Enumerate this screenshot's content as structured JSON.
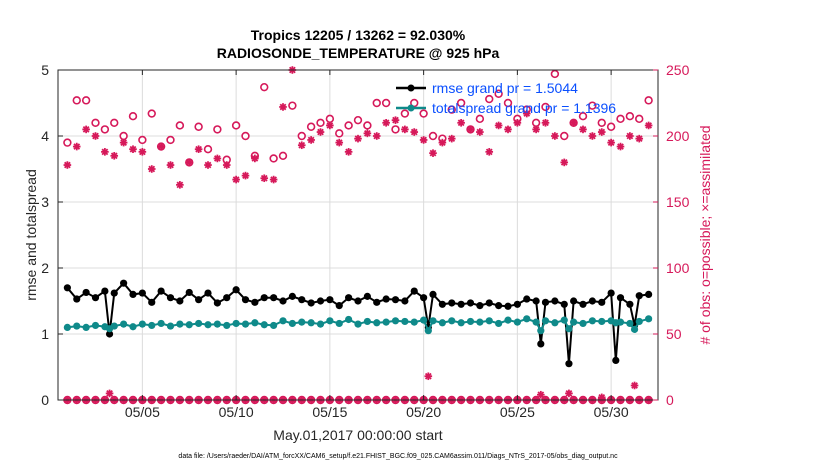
{
  "chart_data": {
    "type": "line",
    "title_line1": "Tropics 12205 / 13262 = 92.030%",
    "title_line2": "RADIOSONDE_TEMPERATURE @ 925 hPa",
    "xlabel": "May.01,2017 00:00:00 start",
    "ylabel_left": "rmse and totalspread",
    "ylabel_right": "# of obs: o=possible; ×=assimilated",
    "xlim": [
      0.5,
      32.5
    ],
    "ylim_left": [
      0,
      5
    ],
    "ylim_right": [
      0,
      250
    ],
    "xticks": [
      5,
      10,
      15,
      20,
      25,
      30
    ],
    "xtick_labels": [
      "05/05",
      "05/10",
      "05/15",
      "05/20",
      "05/25",
      "05/30"
    ],
    "yticks_left": [
      0,
      1,
      2,
      3,
      4,
      5
    ],
    "ytick_labels_left": [
      "0",
      "1",
      "2",
      "3",
      "4",
      "5"
    ],
    "yticks_right": [
      0,
      50,
      100,
      150,
      200,
      250
    ],
    "ytick_labels_right": [
      "0",
      "50",
      "100",
      "150",
      "200",
      "250"
    ],
    "grid": true,
    "legend": [
      {
        "label": "rmse grand pr = 1.5044",
        "color": "#000000"
      },
      {
        "label": "totalspread grand pr = 1.1396",
        "color": "#0f8a8a"
      }
    ],
    "series": [
      {
        "name": "rmse",
        "color": "#000000",
        "axis": "left",
        "x": [
          1.0,
          1.5,
          2.0,
          2.5,
          3.0,
          3.25,
          3.5,
          4.0,
          4.5,
          5.0,
          5.5,
          6.0,
          6.5,
          7.0,
          7.5,
          8.0,
          8.5,
          9.0,
          9.5,
          10.0,
          10.5,
          11.0,
          11.5,
          12.0,
          12.5,
          13.0,
          13.5,
          14.0,
          14.5,
          15.0,
          15.5,
          16.0,
          16.5,
          17.0,
          17.5,
          18.0,
          18.5,
          19.0,
          19.5,
          20.0,
          20.25,
          20.5,
          21.0,
          21.5,
          22.0,
          22.5,
          23.0,
          23.5,
          24.0,
          24.5,
          25.0,
          25.5,
          26.0,
          26.25,
          26.5,
          27.0,
          27.5,
          27.75,
          28.0,
          28.5,
          29.0,
          29.5,
          30.0,
          30.25,
          30.5,
          31.0,
          31.25,
          31.5,
          32.0
        ],
        "values": [
          1.7,
          1.53,
          1.63,
          1.55,
          1.65,
          1.0,
          1.62,
          1.77,
          1.6,
          1.62,
          1.48,
          1.65,
          1.55,
          1.5,
          1.63,
          1.52,
          1.62,
          1.47,
          1.55,
          1.67,
          1.52,
          1.48,
          1.55,
          1.55,
          1.5,
          1.57,
          1.52,
          1.47,
          1.5,
          1.52,
          1.43,
          1.55,
          1.5,
          1.57,
          1.48,
          1.53,
          1.52,
          1.5,
          1.65,
          1.55,
          1.1,
          1.6,
          1.45,
          1.47,
          1.45,
          1.47,
          1.43,
          1.47,
          1.43,
          1.42,
          1.45,
          1.53,
          1.5,
          0.85,
          1.48,
          1.5,
          1.45,
          0.55,
          1.5,
          1.45,
          1.5,
          1.48,
          1.62,
          0.6,
          1.55,
          1.45,
          1.13,
          1.58,
          1.6
        ]
      },
      {
        "name": "totalspread",
        "color": "#0f8a8a",
        "axis": "left",
        "x": [
          1.0,
          1.5,
          2.0,
          2.5,
          3.0,
          3.25,
          3.5,
          4.0,
          4.5,
          5.0,
          5.5,
          6.0,
          6.5,
          7.0,
          7.5,
          8.0,
          8.5,
          9.0,
          9.5,
          10.0,
          10.5,
          11.0,
          11.5,
          12.0,
          12.5,
          13.0,
          13.5,
          14.0,
          14.5,
          15.0,
          15.5,
          16.0,
          16.5,
          17.0,
          17.5,
          18.0,
          18.5,
          19.0,
          19.5,
          20.0,
          20.25,
          20.5,
          21.0,
          21.5,
          22.0,
          22.5,
          23.0,
          23.5,
          24.0,
          24.5,
          25.0,
          25.5,
          26.0,
          26.25,
          26.5,
          27.0,
          27.5,
          27.75,
          28.0,
          28.5,
          29.0,
          29.5,
          30.0,
          30.25,
          30.5,
          31.0,
          31.25,
          31.5,
          32.0
        ],
        "values": [
          1.1,
          1.12,
          1.1,
          1.13,
          1.11,
          1.08,
          1.12,
          1.15,
          1.11,
          1.15,
          1.13,
          1.16,
          1.12,
          1.15,
          1.14,
          1.16,
          1.14,
          1.15,
          1.13,
          1.16,
          1.15,
          1.17,
          1.14,
          1.13,
          1.2,
          1.16,
          1.18,
          1.17,
          1.15,
          1.2,
          1.16,
          1.22,
          1.15,
          1.19,
          1.17,
          1.18,
          1.2,
          1.19,
          1.18,
          1.21,
          1.05,
          1.2,
          1.17,
          1.2,
          1.17,
          1.19,
          1.18,
          1.2,
          1.16,
          1.21,
          1.18,
          1.23,
          1.18,
          1.05,
          1.2,
          1.17,
          1.21,
          1.08,
          1.18,
          1.16,
          1.2,
          1.19,
          1.2,
          1.17,
          1.18,
          1.16,
          1.07,
          1.19,
          1.23
        ]
      },
      {
        "name": "obs possible",
        "color": "#d6195a",
        "axis": "right",
        "marker": "o",
        "x": [
          1.0,
          1.5,
          2.0,
          2.5,
          3.0,
          3.5,
          4.0,
          4.5,
          5.0,
          5.5,
          6.0,
          6.5,
          7.0,
          7.5,
          8.0,
          8.5,
          9.0,
          9.5,
          10.0,
          10.5,
          11.0,
          11.5,
          12.0,
          12.5,
          13.0,
          13.5,
          14.0,
          14.5,
          15.0,
          15.5,
          16.0,
          16.5,
          17.0,
          17.5,
          18.0,
          18.5,
          19.0,
          19.5,
          20.0,
          20.5,
          21.0,
          21.5,
          22.0,
          22.5,
          23.0,
          23.5,
          24.0,
          24.5,
          25.0,
          25.5,
          26.0,
          26.5,
          27.0,
          27.5,
          28.0,
          28.5,
          29.0,
          29.5,
          30.0,
          30.5,
          31.0,
          31.5,
          32.0
        ],
        "values": [
          195,
          227,
          227,
          210,
          205,
          210,
          200,
          215,
          197,
          217,
          192,
          197,
          208,
          180,
          207,
          190,
          205,
          182,
          208,
          200,
          185,
          237,
          183,
          185,
          223,
          200,
          207,
          210,
          213,
          202,
          208,
          212,
          208,
          225,
          225,
          205,
          217,
          225,
          217,
          200,
          198,
          220,
          225,
          205,
          213,
          228,
          232,
          225,
          213,
          220,
          210,
          222,
          247,
          200,
          210,
          215,
          223,
          210,
          207,
          213,
          215,
          213,
          227
        ]
      },
      {
        "name": "obs assimilated",
        "color": "#d6195a",
        "axis": "right",
        "marker": "x",
        "x": [
          1.0,
          1.5,
          2.0,
          2.5,
          3.0,
          3.5,
          4.0,
          4.5,
          5.0,
          5.5,
          6.0,
          6.5,
          7.0,
          7.5,
          8.0,
          8.5,
          9.0,
          9.5,
          10.0,
          10.5,
          11.0,
          11.5,
          12.0,
          12.5,
          13.0,
          13.5,
          14.0,
          14.5,
          15.0,
          15.5,
          16.0,
          16.5,
          17.0,
          17.5,
          18.0,
          18.5,
          19.0,
          19.5,
          20.0,
          20.5,
          21.0,
          21.5,
          22.0,
          22.5,
          23.0,
          23.5,
          24.0,
          24.5,
          25.0,
          25.5,
          26.0,
          26.5,
          27.0,
          27.5,
          28.0,
          28.5,
          29.0,
          29.5,
          30.0,
          30.5,
          31.0,
          31.5,
          32.0
        ],
        "values": [
          178,
          192,
          205,
          200,
          188,
          185,
          195,
          190,
          188,
          175,
          192,
          178,
          163,
          180,
          190,
          178,
          183,
          178,
          167,
          170,
          183,
          168,
          167,
          222,
          250,
          193,
          197,
          203,
          208,
          195,
          188,
          198,
          202,
          200,
          210,
          212,
          205,
          203,
          197,
          187,
          195,
          198,
          210,
          205,
          203,
          188,
          208,
          205,
          210,
          217,
          205,
          210,
          200,
          180,
          210,
          205,
          200,
          203,
          195,
          192,
          200,
          198,
          208
        ]
      }
    ],
    "obs_zero_rows": {
      "possible_x": [
        1.0,
        1.5,
        2.0,
        2.5,
        3.0,
        3.5,
        4.0,
        4.5,
        5.0,
        5.5,
        6.0,
        6.5,
        7.0,
        7.5,
        8.0,
        8.5,
        9.0,
        9.5,
        10.0,
        10.5,
        11.0,
        11.5,
        12.0,
        12.5,
        13.0,
        13.5,
        14.0,
        14.5,
        15.0,
        15.5,
        16.0,
        16.5,
        17.0,
        17.5,
        18.0,
        18.5,
        19.0,
        19.5,
        20.0,
        20.5,
        21.0,
        21.5,
        22.0,
        22.5,
        23.0,
        23.5,
        24.0,
        24.5,
        25.0,
        25.5,
        26.0,
        26.5,
        27.0,
        27.5,
        28.0,
        28.5,
        29.0,
        29.5,
        30.0,
        30.5,
        31.0,
        31.5,
        32.0
      ],
      "possible_values": [
        0,
        0,
        0,
        0,
        0,
        0,
        0,
        0,
        0,
        0,
        0,
        0,
        0,
        0,
        0,
        0,
        0,
        0,
        0,
        0,
        0,
        0,
        0,
        0,
        0,
        0,
        0,
        0,
        0,
        0,
        0,
        0,
        0,
        0,
        0,
        0,
        0,
        0,
        0,
        0,
        0,
        0,
        0,
        0,
        0,
        0,
        0,
        0,
        0,
        0,
        0,
        0,
        0,
        0,
        0,
        0,
        0,
        0,
        0,
        0,
        0,
        0,
        0
      ],
      "rejected_x": [
        3.25,
        20.25,
        26.25,
        27.75,
        29.5,
        31.25
      ],
      "rejected_values": [
        5,
        18,
        4,
        5,
        2,
        11
      ]
    },
    "footer": "data file: /Users/raeder/DAI/ATM_forcXX/CAM6_setup/f.e21.FHIST_BGC.f09_025.CAM6assim.011/Diags_NTrS_2017-05/obs_diag_output.nc"
  }
}
